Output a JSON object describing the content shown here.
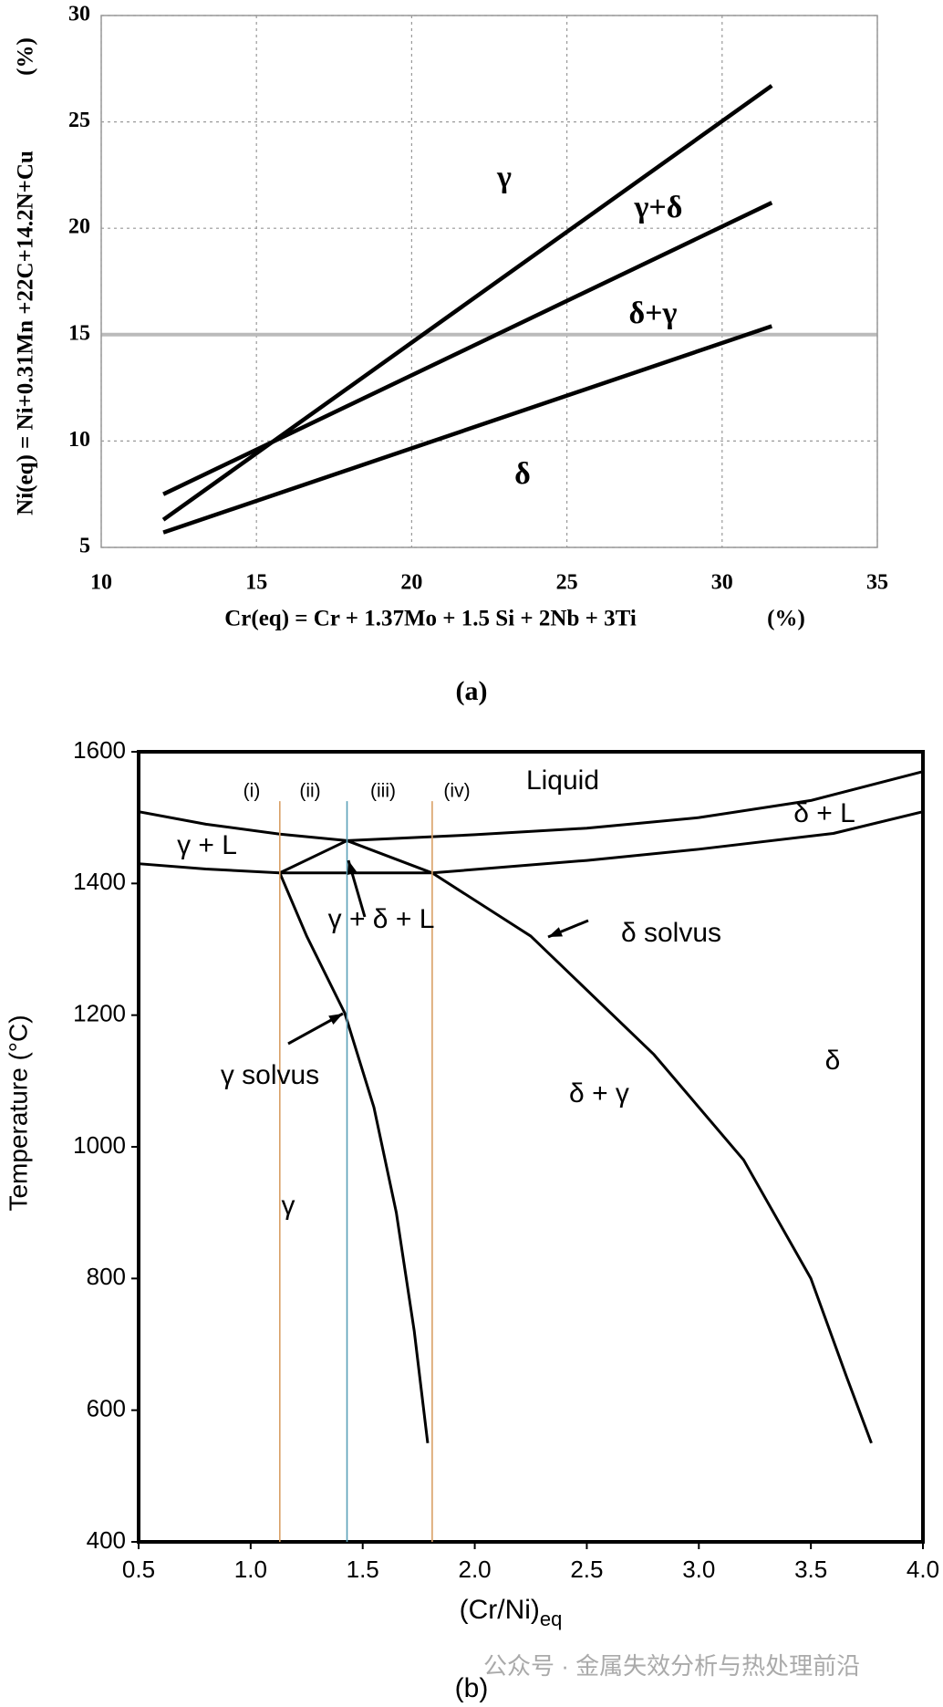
{
  "chart_data": [
    {
      "type": "line",
      "ylabel": "Ni(eq) = Ni+0.31Mn +22C+14.2N+Cu",
      "ylabel_unit": "(%)",
      "xlabel": "Cr(eq) = Cr + 1.37Mo + 1.5 Si + 2Nb + 3Ti",
      "xlabel_unit": "(%)",
      "caption": "(a)",
      "x": [
        12,
        31.6
      ],
      "series": [
        {
          "color": "#000000",
          "values": [
            6.3,
            26.7
          ]
        },
        {
          "color": "#000000",
          "values": [
            7.5,
            21.2
          ]
        },
        {
          "color": "#000000",
          "values": [
            5.7,
            15.4
          ]
        }
      ],
      "xlim": [
        10,
        35
      ],
      "xticks": [
        10,
        15,
        20,
        25,
        30,
        35
      ],
      "ylim": [
        5,
        30
      ],
      "yticks": [
        5,
        10,
        15,
        20,
        25,
        30
      ],
      "grid": true,
      "annotations": [
        "γ",
        "γ+δ",
        "δ+γ",
        "δ"
      ]
    },
    {
      "type": "line",
      "ylabel": "Temperature (°C)",
      "xlabel": "(Cr/Ni)",
      "xlabel_sub": "eq",
      "caption": "(b)",
      "watermark": "公众号 · 金属失效分析与热处理前沿",
      "series": [
        {
          "color": "#000000",
          "x": [
            0.5,
            0.8,
            1.13,
            1.43
          ],
          "values": [
            1509,
            1490,
            1475,
            1465
          ]
        },
        {
          "color": "#000000",
          "x": [
            1.43,
            2.0,
            2.5,
            3.0,
            3.5,
            4.0
          ],
          "values": [
            1465,
            1474,
            1484,
            1500,
            1526,
            1570
          ]
        },
        {
          "color": "#000000",
          "x": [
            0.5,
            0.8,
            1.13
          ],
          "values": [
            1430,
            1422,
            1416
          ]
        },
        {
          "color": "#000000",
          "x": [
            1.13,
            1.81
          ],
          "values": [
            1416,
            1416
          ]
        },
        {
          "color": "#000000",
          "x": [
            1.81,
            2.5,
            3.0,
            3.6,
            4.0
          ],
          "values": [
            1416,
            1435,
            1452,
            1476,
            1509
          ]
        },
        {
          "color": "#000000",
          "x": [
            1.13,
            1.43,
            1.81
          ],
          "values": [
            1416,
            1465,
            1416
          ]
        },
        {
          "color": "#000000",
          "x": [
            1.13,
            1.25,
            1.42,
            1.55,
            1.65,
            1.73,
            1.79
          ],
          "values": [
            1416,
            1320,
            1203,
            1060,
            900,
            720,
            550
          ]
        },
        {
          "color": "#000000",
          "x": [
            1.81,
            2.25,
            2.8,
            3.2,
            3.5,
            3.66,
            3.77
          ],
          "values": [
            1416,
            1320,
            1140,
            980,
            800,
            650,
            550
          ]
        },
        {
          "color": "#d9a066",
          "x": [
            1.13,
            1.13
          ],
          "values": [
            400,
            1525
          ]
        },
        {
          "color": "#5aa0b8",
          "x": [
            1.43,
            1.43
          ],
          "values": [
            400,
            1525
          ]
        },
        {
          "color": "#d9a066",
          "x": [
            1.81,
            1.81
          ],
          "values": [
            400,
            1525
          ]
        }
      ],
      "xlim": [
        0.5,
        4.0
      ],
      "xticks": [
        0.5,
        {
          "value": 1,
          "label": "1.0"
        },
        1.5,
        {
          "value": 2,
          "label": "2.0"
        },
        2.5,
        {
          "value": 3,
          "label": "3.0"
        },
        3.5,
        {
          "value": 4,
          "label": "4.0"
        }
      ],
      "ylim": [
        400,
        1600
      ],
      "yticks": [
        400,
        600,
        800,
        1000,
        1200,
        1400,
        1600
      ],
      "annotations": [
        "Liquid",
        "(i)",
        "(ii)",
        "(iii)",
        "(iv)",
        "δ + L",
        "γ + L",
        "γ + δ + L",
        "δ solvus",
        "γ solvus",
        "δ + γ",
        "δ",
        "γ"
      ]
    }
  ]
}
